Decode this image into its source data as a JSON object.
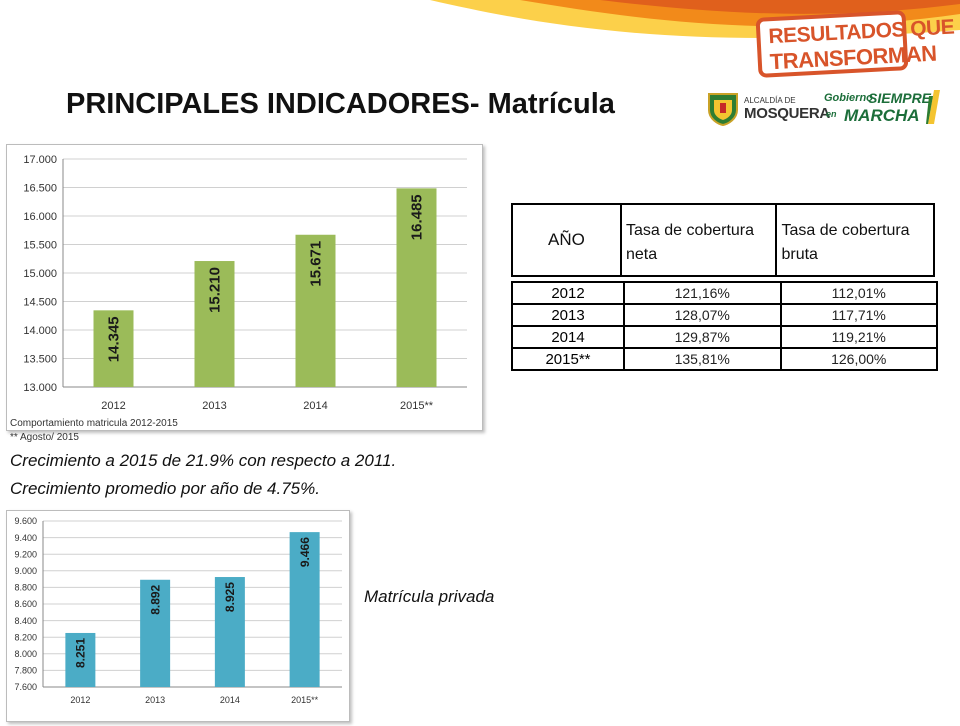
{
  "header": {
    "title": "PRINCIPALES INDICADORES- Matrícula",
    "logo_line1": "RESULTADOS QUE",
    "logo_line2": "TRANSFORMAN",
    "alcaldia_prefix": "ALCALDÍA DE",
    "alcaldia_name": "MOSQUERA",
    "gob_a": "Gobierno",
    "gob_b": "SIEMPRE",
    "gob_c": "en",
    "gob_d": "MARCHA"
  },
  "colors": {
    "banner_orange": "#f28a1a",
    "banner_yellow": "#fcd04a",
    "logo_red": "#d8542a",
    "bar_green": "#9bbb59",
    "bar_blue": "#4bacc6",
    "gob_green": "#1c6e3a"
  },
  "chart_data": [
    {
      "type": "bar",
      "categories": [
        "2012",
        "2013",
        "2014",
        "2015**"
      ],
      "values": [
        14345,
        15210,
        15671,
        16485
      ],
      "value_labels": [
        "14.345",
        "15.210",
        "15.671",
        "16.485"
      ],
      "ylim": [
        13000,
        17000
      ],
      "yticks": [
        "13.000",
        "13.500",
        "14.000",
        "14.500",
        "15.000",
        "15.500",
        "16.000",
        "16.500",
        "17.000"
      ],
      "grid": true,
      "title": "",
      "xlabel": "",
      "ylabel": ""
    },
    {
      "type": "bar",
      "categories": [
        "2012",
        "2013",
        "2014",
        "2015**"
      ],
      "values": [
        8251,
        8892,
        8925,
        9466
      ],
      "value_labels": [
        "8.251",
        "8.892",
        "8.925",
        "9.466"
      ],
      "ylim": [
        7600,
        9600
      ],
      "yticks": [
        "7.600",
        "7.800",
        "8.000",
        "8.200",
        "8.400",
        "8.600",
        "8.800",
        "9.000",
        "9.200",
        "9.400",
        "9.600"
      ],
      "grid": true,
      "title": "",
      "xlabel": "",
      "ylabel": ""
    }
  ],
  "notes": {
    "line1": "Comportamiento matricula 2012-2015",
    "line2": "** Agosto/ 2015"
  },
  "growth": {
    "line1": "Crecimiento a 2015 de 21.9% con respecto a 2011.",
    "line2": "Crecimiento promedio por año de 4.75%."
  },
  "privada_label": "Matrícula privada",
  "table": {
    "headers": [
      "AÑO",
      "Tasa de cobertura neta",
      "Tasa de cobertura bruta"
    ],
    "rows": [
      {
        "year": "2012",
        "neta": "121,16%",
        "bruta": "112,01%"
      },
      {
        "year": "2013",
        "neta": "128,07%",
        "bruta": "117,71%"
      },
      {
        "year": "2014",
        "neta": "129,87%",
        "bruta": "119,21%"
      },
      {
        "year": "2015**",
        "neta": "135,81%",
        "bruta": "126,00%"
      }
    ]
  }
}
